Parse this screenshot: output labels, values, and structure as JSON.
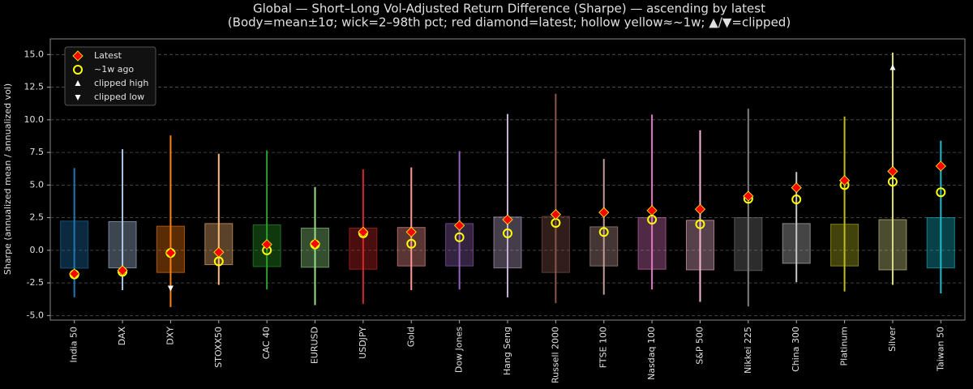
{
  "chart_data": {
    "type": "box",
    "title": "Global — Short–Long Vol-Adjusted Return Difference (Sharpe) — ascending by latest",
    "subtitle": "(Body=mean±1σ; wick=2–98th pct; red diamond=latest; hollow yellow≈~1w; ▲/▼=clipped)",
    "y_label": "Sharpe (annualized mean / annualized vol)",
    "categories": [
      "India 50",
      "DAX",
      "DXY",
      "STOXX50",
      "CAC 40",
      "EURUSD",
      "USDJPY",
      "Gold",
      "Dow Jones",
      "Hang Seng",
      "Russell 2000",
      "FTSE 100",
      "Nasdaq 100",
      "S&P 500",
      "Nikkei 225",
      "China 300",
      "Platinum",
      "Silver",
      "Taiwan 50"
    ],
    "colors": [
      "#1f77b4",
      "#aec7e8",
      "#ff7f0e",
      "#ffbb78",
      "#2ca02c",
      "#98df8a",
      "#d62728",
      "#ff9896",
      "#9467bd",
      "#c5b0d5",
      "#8c564b",
      "#c49c94",
      "#e377c2",
      "#f7b6d2",
      "#7f7f7f",
      "#c7c7c7",
      "#bcbd22",
      "#dbdb8d",
      "#17becf"
    ],
    "body_low": [
      -1.37,
      -1.35,
      -1.7,
      -1.1,
      -1.25,
      -1.3,
      -1.45,
      -1.2,
      -1.2,
      -1.35,
      -1.7,
      -1.2,
      -1.45,
      -1.5,
      -1.55,
      -1.0,
      -1.2,
      -1.5,
      -1.35
    ],
    "body_high": [
      2.24,
      2.2,
      1.85,
      2.05,
      1.95,
      1.7,
      1.7,
      1.75,
      2.05,
      2.55,
      2.6,
      1.8,
      2.5,
      2.3,
      2.5,
      2.05,
      2.0,
      2.35,
      2.5
    ],
    "wick_low": [
      -3.6,
      -3.05,
      -4.35,
      -2.65,
      -3.0,
      -4.2,
      -4.1,
      -3.05,
      -3.0,
      -3.6,
      -4.05,
      -3.4,
      -3.0,
      -3.95,
      -4.3,
      -2.45,
      -3.15,
      -2.65,
      -3.3
    ],
    "wick_high": [
      6.3,
      7.75,
      8.8,
      7.4,
      7.65,
      4.85,
      6.2,
      6.35,
      7.6,
      10.45,
      12.0,
      7.0,
      10.4,
      9.2,
      10.85,
      6.0,
      10.25,
      15.15,
      8.4
    ],
    "latest": [
      -1.8,
      -1.55,
      -0.2,
      -0.15,
      0.45,
      0.5,
      1.4,
      1.4,
      1.9,
      2.35,
      2.75,
      2.9,
      3.05,
      3.15,
      4.15,
      4.8,
      5.35,
      6.05,
      6.45
    ],
    "week_ago": [
      -1.85,
      -1.65,
      -0.2,
      -0.85,
      0.0,
      0.45,
      1.3,
      0.5,
      1.0,
      1.3,
      2.1,
      1.4,
      2.35,
      2.0,
      3.95,
      3.9,
      5.0,
      5.25,
      4.45
    ],
    "clipped_high": [
      null,
      null,
      null,
      null,
      null,
      null,
      null,
      null,
      null,
      null,
      null,
      null,
      null,
      null,
      null,
      null,
      null,
      14.0,
      null
    ],
    "clipped_low": [
      null,
      null,
      -2.9,
      null,
      null,
      null,
      null,
      null,
      null,
      null,
      null,
      null,
      null,
      null,
      null,
      null,
      null,
      null,
      null
    ],
    "legend": [
      "Latest",
      "~1w ago",
      "clipped high",
      "clipped low"
    ],
    "latest_color": "#ff0000",
    "week_color": "#ffff00",
    "clip_color": "#ffffff",
    "ylim": [
      -5.35,
      16.2
    ],
    "yticks": [
      {
        "value": -5,
        "label": "-5.0"
      },
      {
        "value": -2.5,
        "label": "-2.5"
      },
      {
        "value": 0,
        "label": "0.0"
      },
      {
        "value": 2.5,
        "label": "2.5"
      },
      {
        "value": 5,
        "label": "5.0"
      },
      {
        "value": 7.5,
        "label": "7.5"
      },
      {
        "value": 10,
        "label": "10.0"
      },
      {
        "value": 12.5,
        "label": "12.5"
      },
      {
        "value": 15,
        "label": "15.0"
      }
    ],
    "grid": true
  }
}
